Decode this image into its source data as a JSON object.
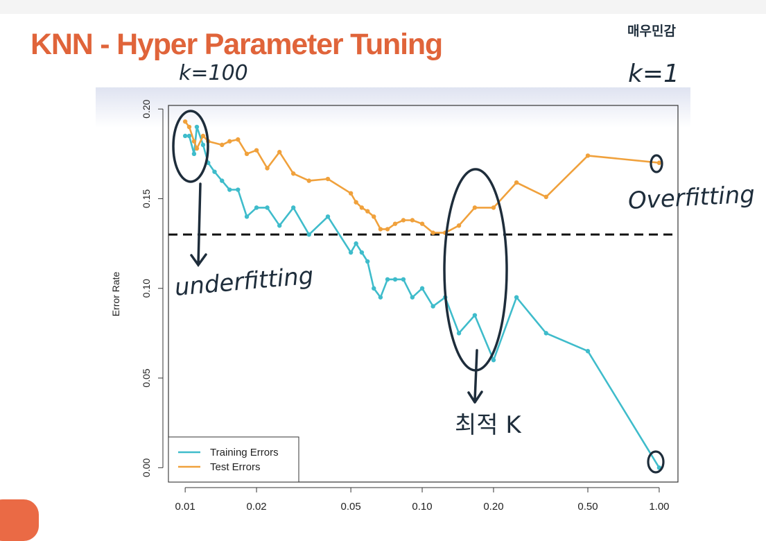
{
  "slide": {
    "title": "KNN - Hyper Parameter Tuning"
  },
  "annotations": {
    "k_left": "k=100",
    "k_right": "k=1",
    "right_top_korean": "매우민감",
    "underfitting": "underfitting",
    "overfitting": "Overfitting",
    "optimal_k": "최적 K"
  },
  "chart_data": {
    "type": "line",
    "title": "",
    "xlabel": "",
    "ylabel": "Error Rate",
    "x_scale": "log",
    "xlim": [
      0.0085,
      1.2
    ],
    "ylim": [
      -0.008,
      0.202
    ],
    "x_ticks": [
      0.01,
      0.02,
      0.05,
      0.1,
      0.2,
      0.5,
      1.0
    ],
    "x_tick_labels": [
      "0.01",
      "0.02",
      "0.05",
      "0.10",
      "0.20",
      "0.50",
      "1.00"
    ],
    "y_ticks": [
      0.0,
      0.05,
      0.1,
      0.15,
      0.2
    ],
    "y_tick_labels": [
      "0.00",
      "0.05",
      "0.10",
      "0.15",
      "0.20"
    ],
    "reference_line": {
      "y": 0.13,
      "style": "dashed"
    },
    "legend": {
      "position": "bottom-left"
    },
    "series": [
      {
        "name": "Training Errors",
        "color": "#3fbccb",
        "points": [
          [
            0.01,
            0.185
          ],
          [
            0.0104,
            0.185
          ],
          [
            0.0109,
            0.175
          ],
          [
            0.0112,
            0.19
          ],
          [
            0.0119,
            0.18
          ],
          [
            0.0125,
            0.17
          ],
          [
            0.0133,
            0.165
          ],
          [
            0.0143,
            0.16
          ],
          [
            0.0154,
            0.155
          ],
          [
            0.0167,
            0.155
          ],
          [
            0.0182,
            0.14
          ],
          [
            0.02,
            0.145
          ],
          [
            0.0222,
            0.145
          ],
          [
            0.025,
            0.135
          ],
          [
            0.0286,
            0.145
          ],
          [
            0.0333,
            0.13
          ],
          [
            0.04,
            0.14
          ],
          [
            0.05,
            0.12
          ],
          [
            0.0526,
            0.125
          ],
          [
            0.0556,
            0.12
          ],
          [
            0.0588,
            0.115
          ],
          [
            0.0625,
            0.1
          ],
          [
            0.0667,
            0.095
          ],
          [
            0.0714,
            0.105
          ],
          [
            0.0769,
            0.105
          ],
          [
            0.0833,
            0.105
          ],
          [
            0.0909,
            0.095
          ],
          [
            0.1,
            0.1
          ],
          [
            0.1111,
            0.09
          ],
          [
            0.125,
            0.095
          ],
          [
            0.1429,
            0.075
          ],
          [
            0.1667,
            0.085
          ],
          [
            0.2,
            0.06
          ],
          [
            0.25,
            0.095
          ],
          [
            0.3333,
            0.075
          ],
          [
            0.5,
            0.065
          ],
          [
            1.0,
            0.0
          ]
        ]
      },
      {
        "name": "Test Errors",
        "color": "#f0a13c",
        "points": [
          [
            0.01,
            0.193
          ],
          [
            0.0104,
            0.19
          ],
          [
            0.0109,
            0.182
          ],
          [
            0.0112,
            0.178
          ],
          [
            0.0119,
            0.185
          ],
          [
            0.0125,
            0.182
          ],
          [
            0.0143,
            0.18
          ],
          [
            0.0154,
            0.182
          ],
          [
            0.0167,
            0.183
          ],
          [
            0.0182,
            0.175
          ],
          [
            0.02,
            0.177
          ],
          [
            0.0222,
            0.167
          ],
          [
            0.025,
            0.176
          ],
          [
            0.0286,
            0.164
          ],
          [
            0.0333,
            0.16
          ],
          [
            0.04,
            0.161
          ],
          [
            0.05,
            0.153
          ],
          [
            0.0526,
            0.148
          ],
          [
            0.0556,
            0.145
          ],
          [
            0.0588,
            0.143
          ],
          [
            0.0625,
            0.14
          ],
          [
            0.0667,
            0.133
          ],
          [
            0.0714,
            0.133
          ],
          [
            0.0769,
            0.136
          ],
          [
            0.0833,
            0.138
          ],
          [
            0.0909,
            0.138
          ],
          [
            0.1,
            0.136
          ],
          [
            0.1111,
            0.131
          ],
          [
            0.125,
            0.131
          ],
          [
            0.1429,
            0.135
          ],
          [
            0.1667,
            0.145
          ],
          [
            0.2,
            0.145
          ],
          [
            0.25,
            0.159
          ],
          [
            0.3333,
            0.151
          ],
          [
            0.5,
            0.174
          ],
          [
            1.0,
            0.17
          ]
        ]
      }
    ]
  }
}
